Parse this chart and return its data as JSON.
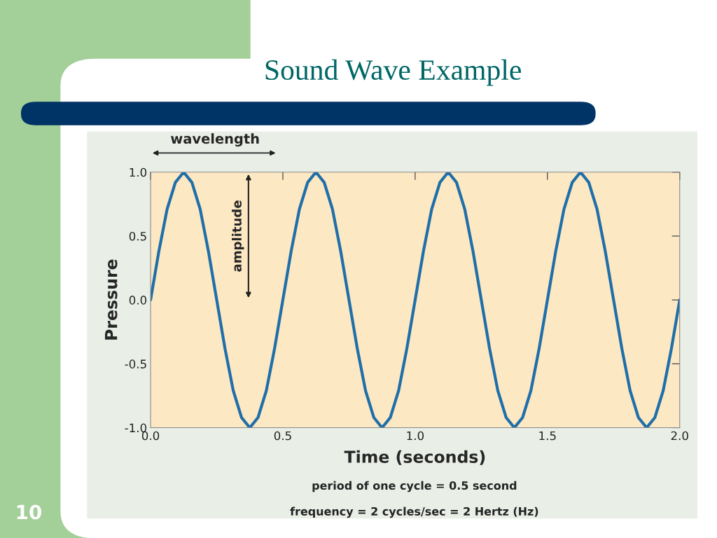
{
  "chart_data": {
    "type": "line",
    "title": "Sound Wave Example",
    "xlabel": "Time (seconds)",
    "ylabel": "Pressure",
    "annotations": [
      "wavelength",
      "amplitude",
      "period of one cycle = 0.5 second",
      "frequency = 2 cycles/sec = 2 Hertz (Hz)",
      "10"
    ],
    "x": [
      0,
      0.03125,
      0.0625,
      0.09375,
      0.125,
      0.15625,
      0.1875,
      0.21875,
      0.25,
      0.28125,
      0.3125,
      0.34375,
      0.375,
      0.40625,
      0.4375,
      0.46875,
      0.5,
      0.53125,
      0.5625,
      0.59375,
      0.625,
      0.65625,
      0.6875,
      0.71875,
      0.75,
      0.78125,
      0.8125,
      0.84375,
      0.875,
      0.90625,
      0.9375,
      0.96875,
      1,
      1.03125,
      1.0625,
      1.09375,
      1.125,
      1.15625,
      1.1875,
      1.21875,
      1.25,
      1.28125,
      1.3125,
      1.34375,
      1.375,
      1.40625,
      1.4375,
      1.46875,
      1.5,
      1.53125,
      1.5625,
      1.59375,
      1.625,
      1.65625,
      1.6875,
      1.71875,
      1.75,
      1.78125,
      1.8125,
      1.84375,
      1.875,
      1.90625,
      1.9375,
      1.96875,
      2
    ],
    "series": [
      {
        "color": "#1f6fa8",
        "values": [
          0,
          0.38,
          0.71,
          0.92,
          1,
          0.92,
          0.71,
          0.38,
          0,
          -0.38,
          -0.71,
          -0.92,
          -1,
          -0.92,
          -0.71,
          -0.38,
          0,
          0.38,
          0.71,
          0.92,
          1,
          0.92,
          0.71,
          0.38,
          0,
          -0.38,
          -0.71,
          -0.92,
          -1,
          -0.92,
          -0.71,
          -0.38,
          0,
          0.38,
          0.71,
          0.92,
          1,
          0.92,
          0.71,
          0.38,
          0,
          -0.38,
          -0.71,
          -0.92,
          -1,
          -0.92,
          -0.71,
          -0.38,
          0,
          0.38,
          0.71,
          0.92,
          1,
          0.92,
          0.71,
          0.38,
          0,
          -0.38,
          -0.71,
          -0.92,
          -1,
          -0.92,
          -0.71,
          -0.38,
          0
        ]
      }
    ],
    "xlim": [
      0,
      2
    ],
    "xticks": [
      {
        "value": 0,
        "label": "0.0"
      },
      {
        "value": 0.5,
        "label": "0.5"
      },
      {
        "value": 1,
        "label": "1.0"
      },
      {
        "value": 1.5,
        "label": "1.5"
      },
      {
        "value": 2,
        "label": "2.0"
      }
    ],
    "ylim": [
      -1,
      1
    ],
    "yticks": [
      {
        "value": -1,
        "label": "-1.0"
      },
      {
        "value": -0.5,
        "label": "-0.5"
      },
      {
        "value": 0,
        "label": "0.0"
      },
      {
        "value": 0.5,
        "label": "0.5"
      },
      {
        "value": 1,
        "label": "1.0"
      }
    ],
    "grid": false,
    "legend": false,
    "marker": "none",
    "line_style": "solid"
  }
}
